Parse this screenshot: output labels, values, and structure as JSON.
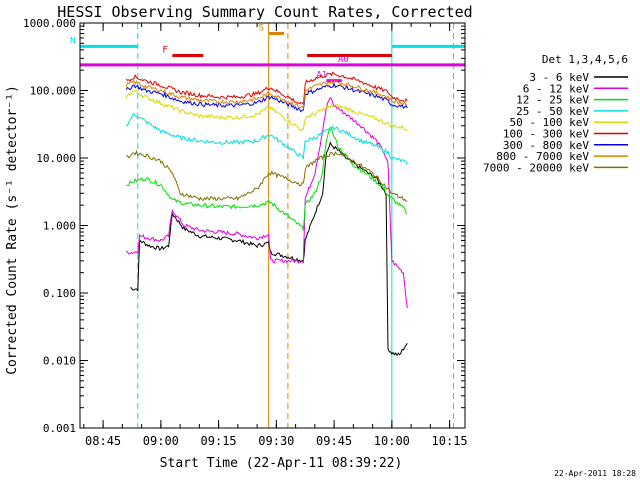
{
  "chart_data": {
    "type": "line",
    "title": "HESSI Observing Summary Count Rates, Corrected",
    "xlabel": "Start Time (22-Apr-11 08:39:22)",
    "ylabel": "Corrected Count Rate (s⁻¹ detector⁻¹)",
    "ylog": true,
    "ylim": [
      0.001,
      1000
    ],
    "xlim_minutes": [
      "08:39",
      "10:19"
    ],
    "xticks": [
      "08:45",
      "09:00",
      "09:15",
      "09:30",
      "09:45",
      "10:00",
      "10:15"
    ],
    "yticks": [
      "1000.000",
      "100.000",
      "10.000",
      "1.000",
      "0.100",
      "0.010",
      "0.001"
    ],
    "legend_title": "Det 1,3,4,5,6",
    "legend_position": "right",
    "timestamp": "22-Apr-2011 18:28",
    "series": [
      {
        "name": "3 - 6 keV",
        "color": "#000000",
        "points": [
          [
            "08:52",
            0.12
          ],
          [
            "08:53",
            0.115
          ],
          [
            "08:54",
            0.115
          ],
          [
            "08:54.5",
            0.6
          ],
          [
            "08:57",
            0.5
          ],
          [
            "09:00",
            0.45
          ],
          [
            "09:02",
            0.5
          ],
          [
            "09:03",
            1.5
          ],
          [
            "09:06",
            0.9
          ],
          [
            "09:10",
            0.7
          ],
          [
            "09:15",
            0.65
          ],
          [
            "09:20",
            0.6
          ],
          [
            "09:25",
            0.5
          ],
          [
            "09:28",
            0.55
          ],
          [
            "09:28.5",
            0.4
          ],
          [
            "09:37",
            0.3
          ],
          [
            "09:37.5",
            0.6
          ],
          [
            "09:40",
            1.5
          ],
          [
            "09:42",
            3
          ],
          [
            "09:43",
            12
          ],
          [
            "09:44",
            16
          ],
          [
            "09:46",
            13
          ],
          [
            "09:48",
            10
          ],
          [
            "09:52",
            7
          ],
          [
            "09:56",
            5
          ],
          [
            "09:58.5",
            3
          ],
          [
            "09:59",
            0.015
          ],
          [
            "10:00",
            0.013
          ],
          [
            "10:02",
            0.012
          ],
          [
            "10:03",
            0.015
          ],
          [
            "10:04",
            0.018
          ]
        ]
      },
      {
        "name": "6 - 12 keV",
        "color": "#e000e0",
        "points": [
          [
            "08:51",
            0.4
          ],
          [
            "08:53",
            0.4
          ],
          [
            "08:54",
            0.42
          ],
          [
            "08:54.5",
            0.7
          ],
          [
            "08:57",
            0.65
          ],
          [
            "09:00",
            0.6
          ],
          [
            "09:02",
            0.7
          ],
          [
            "09:03",
            1.7
          ],
          [
            "09:06",
            1.0
          ],
          [
            "09:10",
            0.85
          ],
          [
            "09:15",
            0.8
          ],
          [
            "09:20",
            0.75
          ],
          [
            "09:25",
            0.65
          ],
          [
            "09:28",
            0.75
          ],
          [
            "09:28.5",
            0.3
          ],
          [
            "09:37",
            0.3
          ],
          [
            "09:37.5",
            2.5
          ],
          [
            "09:40",
            6
          ],
          [
            "09:42",
            25
          ],
          [
            "09:43",
            55
          ],
          [
            "09:44",
            80
          ],
          [
            "09:45",
            60
          ],
          [
            "09:48",
            45
          ],
          [
            "09:52",
            30
          ],
          [
            "09:56",
            18
          ],
          [
            "09:58",
            12
          ],
          [
            "09:59",
            8
          ],
          [
            "10:00",
            0.3
          ],
          [
            "10:03",
            0.2
          ],
          [
            "10:04",
            0.06
          ]
        ]
      },
      {
        "name": "12 - 25 keV",
        "color": "#00e000",
        "points": [
          [
            "08:51",
            4
          ],
          [
            "08:53",
            4.5
          ],
          [
            "08:56",
            5
          ],
          [
            "09:00",
            4
          ],
          [
            "09:03",
            2.4
          ],
          [
            "09:06",
            2.1
          ],
          [
            "09:10",
            2
          ],
          [
            "09:15",
            1.9
          ],
          [
            "09:20",
            1.9
          ],
          [
            "09:25",
            2
          ],
          [
            "09:28",
            2.2
          ],
          [
            "09:28.5",
            2.2
          ],
          [
            "09:37",
            0.9
          ],
          [
            "09:37.5",
            2
          ],
          [
            "09:40",
            3
          ],
          [
            "09:42",
            6
          ],
          [
            "09:43",
            18
          ],
          [
            "09:44",
            30
          ],
          [
            "09:46",
            15
          ],
          [
            "09:50",
            8
          ],
          [
            "09:55",
            5
          ],
          [
            "09:58",
            3.5
          ],
          [
            "09:59",
            2.8
          ],
          [
            "10:00",
            2.5
          ],
          [
            "10:03",
            1.8
          ],
          [
            "10:04",
            1.5
          ]
        ]
      },
      {
        "name": "25 - 50 keV",
        "color": "#00e0e0",
        "points": [
          [
            "08:51",
            30
          ],
          [
            "08:53",
            45
          ],
          [
            "08:56",
            35
          ],
          [
            "09:00",
            25
          ],
          [
            "09:05",
            20
          ],
          [
            "09:10",
            18
          ],
          [
            "09:15",
            17
          ],
          [
            "09:20",
            17
          ],
          [
            "09:25",
            18
          ],
          [
            "09:28",
            22
          ],
          [
            "09:28.5",
            22
          ],
          [
            "09:37",
            10
          ],
          [
            "09:37.5",
            18
          ],
          [
            "09:40",
            20
          ],
          [
            "09:43",
            25
          ],
          [
            "09:45",
            28
          ],
          [
            "09:48",
            24
          ],
          [
            "09:52",
            18
          ],
          [
            "09:56",
            15
          ],
          [
            "09:59",
            12
          ],
          [
            "10:00",
            10
          ],
          [
            "10:03",
            9
          ],
          [
            "10:04",
            8
          ]
        ]
      },
      {
        "name": "50 - 100 keV",
        "color": "#d8d800",
        "points": [
          [
            "08:51",
            80
          ],
          [
            "08:53",
            100
          ],
          [
            "08:56",
            80
          ],
          [
            "09:00",
            65
          ],
          [
            "09:05",
            50
          ],
          [
            "09:10",
            42
          ],
          [
            "09:15",
            40
          ],
          [
            "09:20",
            40
          ],
          [
            "09:25",
            44
          ],
          [
            "09:28",
            55
          ],
          [
            "09:28.5",
            55
          ],
          [
            "09:37",
            25
          ],
          [
            "09:37.5",
            40
          ],
          [
            "09:40",
            45
          ],
          [
            "09:43",
            55
          ],
          [
            "09:45",
            60
          ],
          [
            "09:48",
            55
          ],
          [
            "09:52",
            45
          ],
          [
            "09:56",
            38
          ],
          [
            "09:59",
            32
          ],
          [
            "10:00",
            30
          ],
          [
            "10:03",
            28
          ],
          [
            "10:04",
            26
          ]
        ]
      },
      {
        "name": "100 - 300 keV",
        "color": "#e00000",
        "points": [
          [
            "08:51",
            140
          ],
          [
            "08:53",
            160
          ],
          [
            "08:56",
            140
          ],
          [
            "09:00",
            120
          ],
          [
            "09:05",
            95
          ],
          [
            "09:10",
            85
          ],
          [
            "09:15",
            80
          ],
          [
            "09:20",
            80
          ],
          [
            "09:25",
            90
          ],
          [
            "09:28",
            110
          ],
          [
            "09:28.5",
            110
          ],
          [
            "09:37",
            60
          ],
          [
            "09:37.5",
            130
          ],
          [
            "09:40",
            150
          ],
          [
            "09:43",
            170
          ],
          [
            "09:45",
            175
          ],
          [
            "09:48",
            160
          ],
          [
            "09:52",
            135
          ],
          [
            "09:56",
            110
          ],
          [
            "09:59",
            95
          ],
          [
            "10:00",
            80
          ],
          [
            "10:03",
            72
          ],
          [
            "10:04",
            70
          ]
        ]
      },
      {
        "name": "300 - 800 keV",
        "color": "#0000e0",
        "points": [
          [
            "08:51",
            100
          ],
          [
            "08:53",
            120
          ],
          [
            "08:56",
            100
          ],
          [
            "09:00",
            90
          ],
          [
            "09:05",
            70
          ],
          [
            "09:10",
            63
          ],
          [
            "09:15",
            60
          ],
          [
            "09:20",
            60
          ],
          [
            "09:25",
            66
          ],
          [
            "09:28",
            80
          ],
          [
            "09:28.5",
            80
          ],
          [
            "09:37",
            50
          ],
          [
            "09:37.5",
            90
          ],
          [
            "09:40",
            100
          ],
          [
            "09:43",
            115
          ],
          [
            "09:45",
            120
          ],
          [
            "09:48",
            110
          ],
          [
            "09:52",
            95
          ],
          [
            "09:56",
            82
          ],
          [
            "09:59",
            70
          ],
          [
            "10:00",
            62
          ],
          [
            "10:03",
            58
          ],
          [
            "10:04",
            55
          ]
        ]
      },
      {
        "name": "800 - 7000 keV",
        "color": "#e08000",
        "points": [
          [
            "08:51",
            120
          ],
          [
            "08:53",
            135
          ],
          [
            "08:56",
            115
          ],
          [
            "09:00",
            100
          ],
          [
            "09:05",
            80
          ],
          [
            "09:10",
            72
          ],
          [
            "09:15",
            68
          ],
          [
            "09:20",
            68
          ],
          [
            "09:25",
            75
          ],
          [
            "09:28",
            90
          ],
          [
            "09:28.5",
            90
          ],
          [
            "09:37",
            55
          ],
          [
            "09:37.5",
            100
          ],
          [
            "09:40",
            115
          ],
          [
            "09:43",
            130
          ],
          [
            "09:45",
            135
          ],
          [
            "09:48",
            125
          ],
          [
            "09:52",
            108
          ],
          [
            "09:56",
            92
          ],
          [
            "09:59",
            80
          ],
          [
            "10:00",
            70
          ],
          [
            "10:03",
            65
          ],
          [
            "10:04",
            62
          ]
        ]
      },
      {
        "name": "7000 - 20000 keV",
        "color": "#807000",
        "points": [
          [
            "08:51",
            10
          ],
          [
            "08:53",
            12
          ],
          [
            "08:56",
            11
          ],
          [
            "09:00",
            9
          ],
          [
            "09:03",
            6
          ],
          [
            "09:05",
            3
          ],
          [
            "09:10",
            2.5
          ],
          [
            "09:15",
            2.5
          ],
          [
            "09:20",
            2.5
          ],
          [
            "09:25",
            3.5
          ],
          [
            "09:28",
            6
          ],
          [
            "09:28.5",
            6
          ],
          [
            "09:37",
            4
          ],
          [
            "09:37.5",
            7
          ],
          [
            "09:40",
            9
          ],
          [
            "09:43",
            11
          ],
          [
            "09:46",
            12
          ],
          [
            "09:50",
            9
          ],
          [
            "09:55",
            6
          ],
          [
            "09:58",
            4
          ],
          [
            "10:00",
            3
          ],
          [
            "10:03",
            2.5
          ],
          [
            "10:04",
            2.3
          ]
        ]
      }
    ],
    "flags": [
      {
        "label": "N",
        "color": "#00e0e0",
        "y": 450,
        "spans": [
          [
            "08:39",
            "08:54"
          ],
          [
            "10:00",
            "10:19"
          ]
        ]
      },
      {
        "label": "F",
        "color": "#e00000",
        "y": 330,
        "spans": [
          [
            "09:03",
            "09:11"
          ],
          [
            "09:38",
            "10:00"
          ]
        ]
      },
      {
        "label": "S",
        "color": "#e08000",
        "y": 700,
        "spans": [
          [
            "09:28",
            "09:32"
          ]
        ]
      },
      {
        "label": "A0",
        "color": "#e000e0",
        "y": 240,
        "spans": [
          [
            "08:39",
            "10:19"
          ]
        ]
      },
      {
        "label": "A1",
        "color": "#e000e0",
        "y": 140,
        "spans": [
          [
            "09:43",
            "09:47"
          ]
        ]
      }
    ],
    "vlines": [
      {
        "t": "08:54",
        "color": "#00e0e0",
        "dash": true
      },
      {
        "t": "09:28",
        "color": "#e08000",
        "dash": false
      },
      {
        "t": "09:33",
        "color": "#e08000",
        "dash": true
      },
      {
        "t": "10:00",
        "color": "#00e0e0",
        "dash": false
      },
      {
        "t": "10:16",
        "color": "#00e0e0",
        "dash": true
      }
    ]
  }
}
